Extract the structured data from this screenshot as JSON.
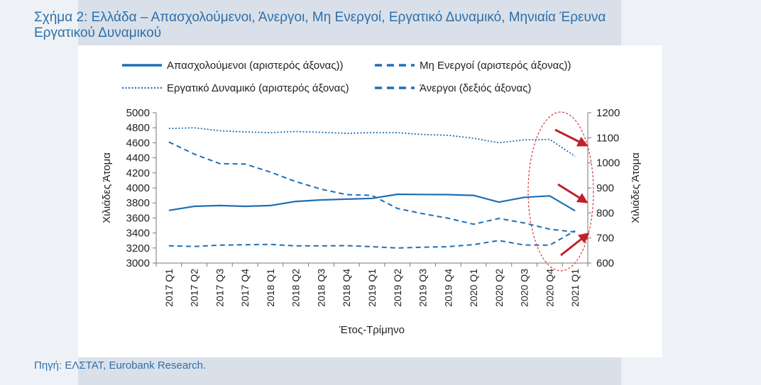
{
  "page": {
    "title_line1": "Σχήμα 2: Ελλάδα – Απασχολούμενοι, Άνεργοι, Μη Ενεργοί, Εργατικό Δυναμικό, Μηνιαία Έρευνα",
    "title_line2": "Εργατικού Δυναμικού",
    "source": "Πηγή: ΕΛΣΤΑΤ, Eurobank Research."
  },
  "colors": {
    "accent": "#2f6fa8",
    "series": "#1f6fb5",
    "highlight_circle": "#d23a3a",
    "arrow": "#c0202a"
  },
  "chart_data": {
    "type": "line",
    "xlabel": "Έτος-Τρίμηνο",
    "ylabel_left": "Χιλιάδες Άτομα",
    "ylabel_right": "Χιλιάδες Άτομα",
    "ylim_left": [
      3000,
      5000
    ],
    "ylim_right": [
      600,
      1200
    ],
    "yticks_left": [
      "3000",
      "3200",
      "3400",
      "3600",
      "3800",
      "4000",
      "4200",
      "4400",
      "4600",
      "4800",
      "5000"
    ],
    "yticks_right": [
      "600",
      "700",
      "800",
      "900",
      "1000",
      "1100",
      "1200"
    ],
    "categories": [
      "2017 Q1",
      "2017 Q2",
      "2017 Q3",
      "2017 Q4",
      "2018 Q1",
      "2018 Q2",
      "2018 Q3",
      "2018 Q4",
      "2019 Q1",
      "2019 Q2",
      "2019 Q3",
      "2019 Q4",
      "2020 Q1",
      "2020 Q2",
      "2020 Q3",
      "2020 Q4",
      "2021 Q1"
    ],
    "series": [
      {
        "name": "Απασχολούμενοι (αριστερός άξονας))",
        "axis": "left",
        "style": "solid",
        "values": [
          3700,
          3755,
          3765,
          3755,
          3765,
          3820,
          3840,
          3850,
          3860,
          3915,
          3912,
          3910,
          3900,
          3810,
          3875,
          3893,
          3695
        ]
      },
      {
        "name": "Μη Ενεργοί (αριστερός άξονας))",
        "axis": "left",
        "style": "dashed",
        "values": [
          3230,
          3220,
          3238,
          3243,
          3248,
          3228,
          3228,
          3232,
          3218,
          3200,
          3210,
          3218,
          3245,
          3300,
          3240,
          3238,
          3430
        ]
      },
      {
        "name": "Εργατικό Δυναμικό (αριστερός άξονας)",
        "axis": "left",
        "style": "dotted",
        "values": [
          4790,
          4800,
          4760,
          4745,
          4735,
          4750,
          4740,
          4725,
          4735,
          4735,
          4710,
          4700,
          4660,
          4600,
          4640,
          4645,
          4420
        ]
      },
      {
        "name": "Άνεργοι (δεξιός άξονας)",
        "axis": "right",
        "style": "dashed",
        "values": [
          1083,
          1035,
          997,
          995,
          963,
          925,
          895,
          873,
          870,
          818,
          797,
          779,
          755,
          778,
          760,
          735,
          724
        ]
      }
    ],
    "grid": false,
    "legend": "top"
  }
}
